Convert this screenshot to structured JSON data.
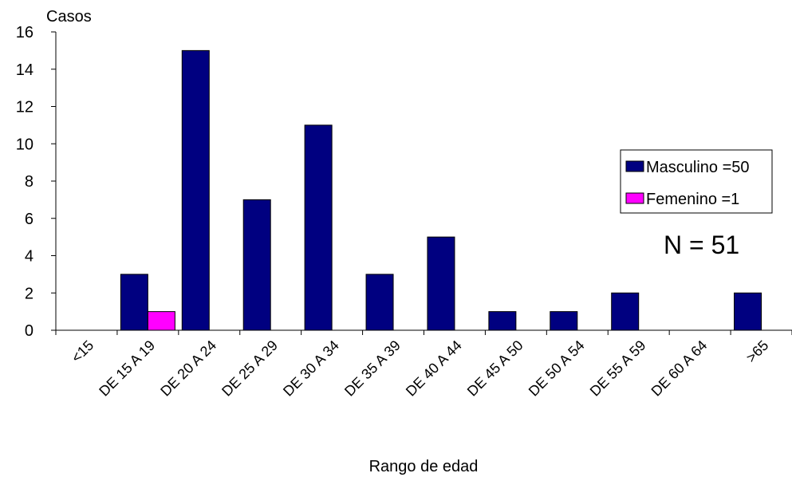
{
  "chart_data": {
    "type": "bar",
    "ylabel": "Casos",
    "xlabel": "Rango de edad",
    "categories": [
      "<15",
      "DE  15 A 19",
      "DE  20 A 24",
      "DE  25 A 29",
      "DE  30 A 34",
      "DE  35 A 39",
      "DE  40 A 44",
      "DE  45 A 50",
      "DE  50 A 54",
      "DE  55 A 59",
      "DE  60 A 64",
      ">65"
    ],
    "series": [
      {
        "name": "Masculino =50",
        "color": "#000080",
        "values": [
          0,
          3,
          15,
          7,
          11,
          3,
          5,
          1,
          1,
          2,
          0,
          2
        ]
      },
      {
        "name": "Femenino =1",
        "color": "#FF00FF",
        "values": [
          0,
          1,
          0,
          0,
          0,
          0,
          0,
          0,
          0,
          0,
          0,
          0
        ]
      }
    ],
    "ylim": [
      0,
      16
    ],
    "yticks": [
      0,
      2,
      4,
      6,
      8,
      10,
      12,
      14,
      16
    ],
    "grid": false,
    "legend_position": "right",
    "annotation": "N = 51"
  }
}
